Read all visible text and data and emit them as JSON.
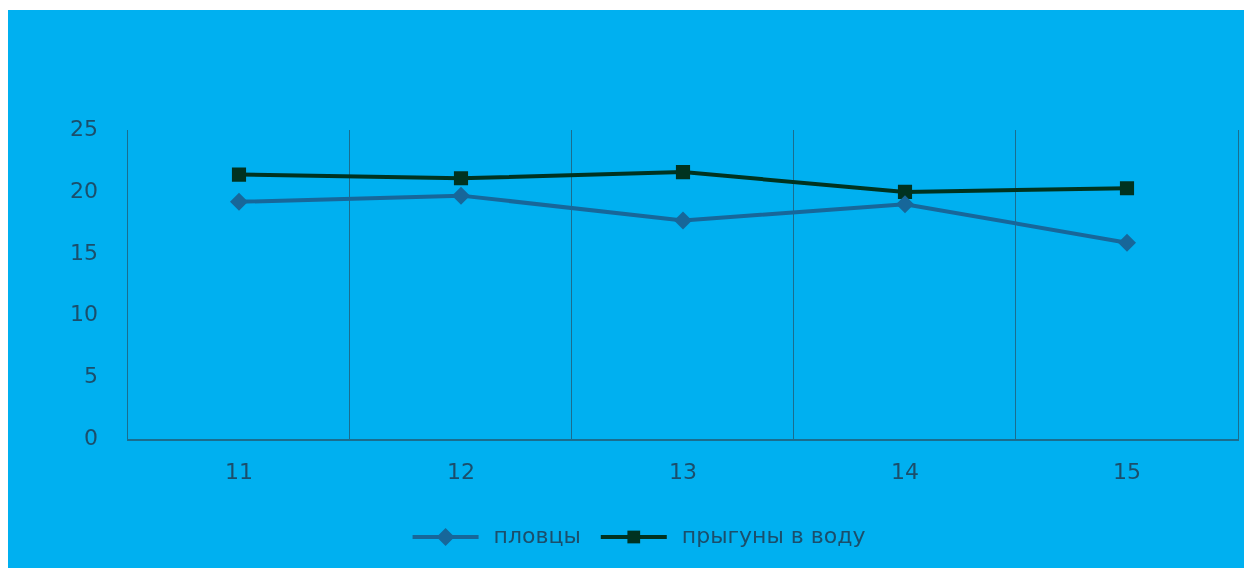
{
  "chart_data": {
    "type": "line",
    "categories": [
      "11",
      "12",
      "13",
      "14",
      "15"
    ],
    "series": [
      {
        "name": "пловцы",
        "color": "#17679a",
        "marker": "diamond",
        "values": [
          19.2,
          19.7,
          17.7,
          19.0,
          15.9
        ]
      },
      {
        "name": "прыгуны в воду",
        "color": "#003320",
        "marker": "square",
        "values": [
          21.4,
          21.1,
          21.6,
          20.0,
          20.3
        ]
      }
    ],
    "ylim": [
      0,
      25
    ],
    "yticks": [
      0,
      5,
      10,
      15,
      20,
      25
    ],
    "grid": "x",
    "legend": "bottom",
    "line_style": "solid"
  }
}
